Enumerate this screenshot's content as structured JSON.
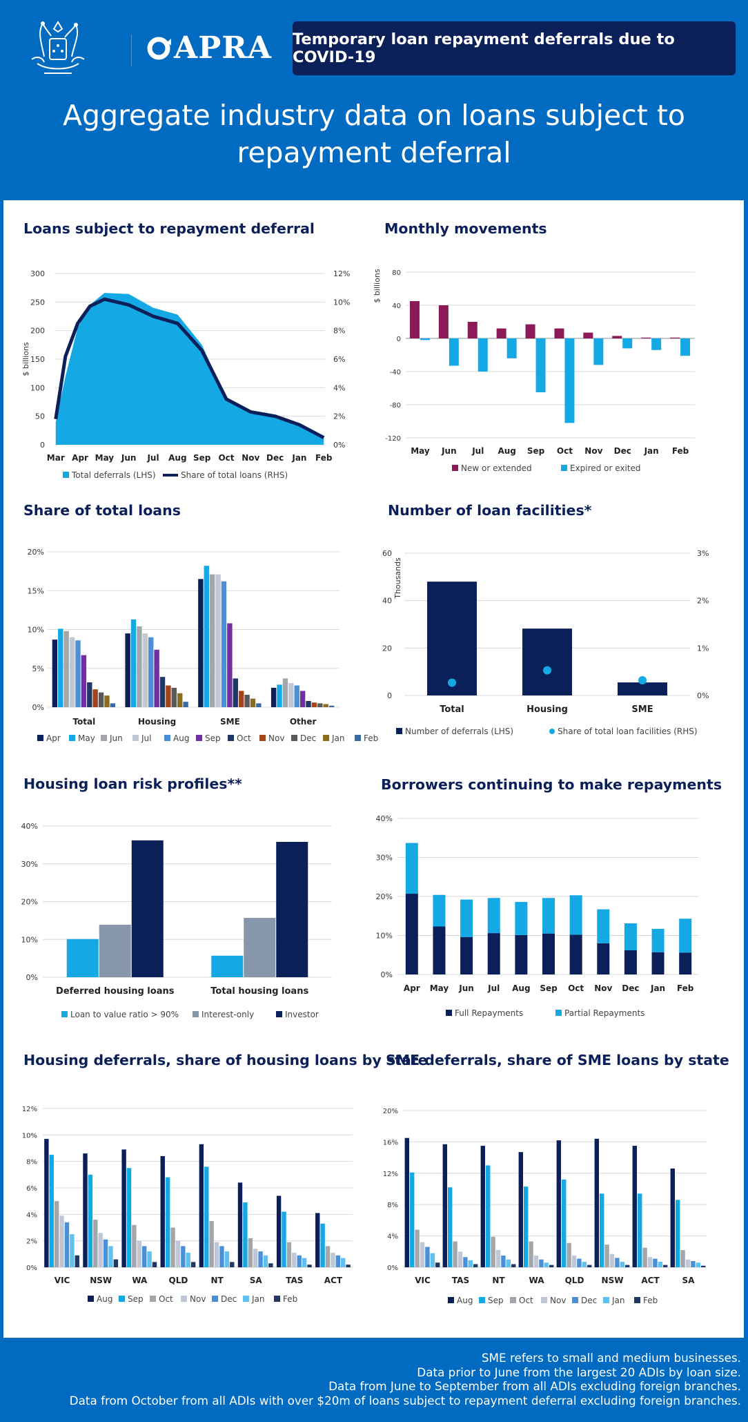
{
  "header": {
    "logo_text": "APRA",
    "crest_icon": "coat-of-arms-icon",
    "logo_icon": "apra-ring-icon",
    "banner": "Temporary loan repayment deferrals due to COVID-19",
    "title_line1": "Aggregate industry data on loans subject to",
    "title_line2": "repayment deferral"
  },
  "colors": {
    "navy": "#0b1f59",
    "cyan": "#14a9e4",
    "maroon": "#8c1a57",
    "grey": "#8797ab",
    "mid_grey": "#a3a6ab",
    "light_grey": "#bfc6d6",
    "blue": "#4a90d9",
    "purple": "#7030a0",
    "dark_red": "#a5441c",
    "dark_grey": "#595959",
    "olive": "#8a6d1f",
    "slate": "#3b6aa0"
  },
  "chart_data": [
    {
      "id": "deferrals",
      "type": "area",
      "title": "Loans subject to repayment deferral",
      "x": [
        "Mar",
        "Apr",
        "May",
        "Jun",
        "Jul",
        "Aug",
        "Sep",
        "Oct",
        "Nov",
        "Dec",
        "Jan",
        "Feb"
      ],
      "series": [
        {
          "name": "Total deferrals (LHS)",
          "axis": "left",
          "color": "#14a9e4",
          "points": [
            [
              0,
              40
            ],
            [
              0.4,
              120
            ],
            [
              0.9,
              205
            ],
            [
              1.4,
              245
            ],
            [
              2,
              266
            ],
            [
              3,
              264
            ],
            [
              4,
              240
            ],
            [
              5,
              228
            ],
            [
              6,
              175
            ],
            [
              7,
              80
            ],
            [
              8,
              56
            ],
            [
              9,
              48
            ],
            [
              10,
              35
            ],
            [
              11,
              12
            ]
          ]
        },
        {
          "name": "Share of total loans (RHS)",
          "axis": "right",
          "color": "#0b1f59",
          "points": [
            [
              0,
              1.8
            ],
            [
              0.4,
              6.2
            ],
            [
              0.9,
              8.5
            ],
            [
              1.4,
              9.7
            ],
            [
              2,
              10.2
            ],
            [
              3,
              9.8
            ],
            [
              4,
              9.0
            ],
            [
              5,
              8.5
            ],
            [
              6,
              6.6
            ],
            [
              7,
              3.2
            ],
            [
              8,
              2.3
            ],
            [
              9,
              2.0
            ],
            [
              10,
              1.4
            ],
            [
              11,
              0.5
            ]
          ]
        }
      ],
      "ylabel": "$ billions",
      "ylim": [
        0,
        300
      ],
      "yticks": [
        "0",
        "50",
        "100",
        "150",
        "200",
        "250",
        "300"
      ],
      "y2lim": [
        0,
        12
      ],
      "y2ticks": [
        "0%",
        "2%",
        "4%",
        "6%",
        "8%",
        "10%",
        "12%"
      ]
    },
    {
      "id": "movements",
      "type": "bar",
      "title": "Monthly movements",
      "categories": [
        "May",
        "Jun",
        "Jul",
        "Aug",
        "Sep",
        "Oct",
        "Nov",
        "Dec",
        "Jan",
        "Feb"
      ],
      "series": [
        {
          "name": "New or extended",
          "color": "#8c1a57",
          "values": [
            45,
            40,
            20,
            12,
            17,
            12,
            7,
            3,
            1,
            1
          ]
        },
        {
          "name": "Expired or exited",
          "color": "#14a9e4",
          "values": [
            -2,
            -33,
            -40,
            -24,
            -65,
            -102,
            -32,
            -12,
            -14,
            -21
          ]
        }
      ],
      "ylabel": "$ billions",
      "ylim": [
        -120,
        80
      ],
      "yticks": [
        "-120",
        "-80",
        "-40",
        "0",
        "40",
        "80"
      ]
    },
    {
      "id": "share",
      "type": "bar",
      "title": "Share of total loans",
      "categories": [
        "Total",
        "Housing",
        "SME",
        "Other"
      ],
      "series": [
        {
          "name": "Apr",
          "color": "#0b1f59",
          "values": [
            8.7,
            9.5,
            16.5,
            2.5
          ]
        },
        {
          "name": "May",
          "color": "#14a9e4",
          "values": [
            10.1,
            11.3,
            18.2,
            2.9
          ]
        },
        {
          "name": "Jun",
          "color": "#a3a6ab",
          "values": [
            9.8,
            10.4,
            17.1,
            3.7
          ]
        },
        {
          "name": "Jul",
          "color": "#bfc6d6",
          "values": [
            9.0,
            9.5,
            17.1,
            3.1
          ]
        },
        {
          "name": "Aug",
          "color": "#4a90d9",
          "values": [
            8.6,
            9.0,
            16.2,
            2.8
          ]
        },
        {
          "name": "Sep",
          "color": "#7030a0",
          "values": [
            6.7,
            7.4,
            10.8,
            2.1
          ]
        },
        {
          "name": "Oct",
          "color": "#1f3864",
          "values": [
            3.2,
            3.9,
            3.7,
            0.8
          ]
        },
        {
          "name": "Nov",
          "color": "#a5441c",
          "values": [
            2.3,
            2.8,
            2.1,
            0.6
          ]
        },
        {
          "name": "Dec",
          "color": "#595959",
          "values": [
            1.9,
            2.5,
            1.6,
            0.5
          ]
        },
        {
          "name": "Jan",
          "color": "#8a6d1f",
          "values": [
            1.5,
            1.8,
            1.1,
            0.4
          ]
        },
        {
          "name": "Feb",
          "color": "#3b6aa0",
          "values": [
            0.5,
            0.7,
            0.5,
            0.2
          ]
        }
      ],
      "ylim": [
        0,
        20
      ],
      "yticks": [
        "0%",
        "5%",
        "10%",
        "15%",
        "20%"
      ]
    },
    {
      "id": "facilities",
      "type": "bar",
      "title": "Number of loan facilities*",
      "categories": [
        "Total",
        "Housing",
        "SME"
      ],
      "series": [
        {
          "name": "Number of deferrals (LHS)",
          "color": "#0b1f59",
          "values": [
            48,
            28.2,
            5.5
          ]
        },
        {
          "name": "Share of total loan facilities (RHS)",
          "color": "#14a9e4",
          "values": [
            0.27,
            0.53,
            0.32
          ]
        }
      ],
      "ylabel": "Thousands",
      "ylim": [
        0,
        60
      ],
      "yticks": [
        "0",
        "20",
        "40",
        "60"
      ],
      "y2lim": [
        0,
        3
      ],
      "y2ticks": [
        "0%",
        "1%",
        "2%",
        "3%"
      ]
    },
    {
      "id": "risk",
      "type": "bar",
      "title": "Housing loan risk profiles**",
      "categories": [
        "Deferred housing loans",
        "Total housing loans"
      ],
      "series": [
        {
          "name": "Loan to value ratio > 90%",
          "color": "#14a9e4",
          "values": [
            10.1,
            5.7
          ]
        },
        {
          "name": "Interest-only",
          "color": "#8797ab",
          "values": [
            13.9,
            15.7
          ]
        },
        {
          "name": "Investor",
          "color": "#0b1f59",
          "values": [
            36.2,
            35.8
          ]
        }
      ],
      "ylim": [
        0,
        40
      ],
      "yticks": [
        "0%",
        "10%",
        "20%",
        "30%",
        "40%"
      ]
    },
    {
      "id": "repayments",
      "type": "bar",
      "title": "Borrowers continuing to make repayments",
      "categories": [
        "Apr",
        "May",
        "Jun",
        "Jul",
        "Aug",
        "Sep",
        "Oct",
        "Nov",
        "Dec",
        "Jan",
        "Feb"
      ],
      "stacked": true,
      "series": [
        {
          "name": "Full Repayments",
          "color": "#0b1f59",
          "values": [
            20.7,
            12.3,
            9.6,
            10.6,
            10.1,
            10.5,
            10.2,
            8.0,
            6.2,
            5.7,
            5.6
          ]
        },
        {
          "name": "Partial Repayments",
          "color": "#14a9e4",
          "values": [
            13.0,
            8.1,
            9.6,
            9.0,
            8.5,
            9.1,
            10.1,
            8.7,
            6.9,
            6.0,
            8.7
          ]
        }
      ],
      "ylim": [
        0,
        40
      ],
      "yticks": [
        "0%",
        "10%",
        "20%",
        "30%",
        "40%"
      ]
    },
    {
      "id": "housing_state",
      "type": "bar",
      "title": "Housing deferrals, share of housing loans by state",
      "categories": [
        "VIC",
        "NSW",
        "WA",
        "QLD",
        "NT",
        "SA",
        "TAS",
        "ACT"
      ],
      "series": [
        {
          "name": "Aug",
          "color": "#0b1f59",
          "values": [
            9.7,
            8.6,
            8.9,
            8.4,
            9.3,
            6.4,
            5.4,
            4.1
          ]
        },
        {
          "name": "Sep",
          "color": "#14a9e4",
          "values": [
            8.5,
            7.0,
            7.5,
            6.8,
            7.6,
            4.9,
            4.2,
            3.3
          ]
        },
        {
          "name": "Oct",
          "color": "#a3a6ab",
          "values": [
            5.0,
            3.6,
            3.2,
            3.0,
            3.5,
            2.2,
            1.9,
            1.6
          ]
        },
        {
          "name": "Nov",
          "color": "#bfc6d6",
          "values": [
            3.9,
            2.6,
            2.0,
            2.0,
            1.9,
            1.4,
            1.1,
            1.1
          ]
        },
        {
          "name": "Dec",
          "color": "#4a90d9",
          "values": [
            3.4,
            2.1,
            1.6,
            1.6,
            1.6,
            1.2,
            0.9,
            0.9
          ]
        },
        {
          "name": "Jan",
          "color": "#5ec1f0",
          "values": [
            2.5,
            1.6,
            1.2,
            1.1,
            1.2,
            0.9,
            0.7,
            0.7
          ]
        },
        {
          "name": "Feb",
          "color": "#1f3864",
          "values": [
            0.9,
            0.6,
            0.4,
            0.4,
            0.4,
            0.3,
            0.2,
            0.2
          ]
        }
      ],
      "ylim": [
        0,
        12
      ],
      "yticks": [
        "0%",
        "2%",
        "4%",
        "6%",
        "8%",
        "10%",
        "12%"
      ]
    },
    {
      "id": "sme_state",
      "type": "bar",
      "title": "SME deferrals, share of SME loans by state",
      "categories": [
        "VIC",
        "TAS",
        "NT",
        "WA",
        "QLD",
        "NSW",
        "ACT",
        "SA"
      ],
      "series": [
        {
          "name": "Aug",
          "color": "#0b1f59",
          "values": [
            16.5,
            15.7,
            15.5,
            14.7,
            16.2,
            16.4,
            15.5,
            12.6
          ]
        },
        {
          "name": "Sep",
          "color": "#14a9e4",
          "values": [
            12.1,
            10.2,
            13.0,
            10.3,
            11.2,
            9.4,
            9.4,
            8.6
          ]
        },
        {
          "name": "Oct",
          "color": "#a3a6ab",
          "values": [
            4.8,
            3.3,
            3.9,
            3.3,
            3.1,
            2.9,
            2.5,
            2.2
          ]
        },
        {
          "name": "Nov",
          "color": "#bfc6d6",
          "values": [
            3.2,
            2.0,
            2.2,
            1.5,
            1.5,
            1.7,
            1.3,
            1.0
          ]
        },
        {
          "name": "Dec",
          "color": "#4a90d9",
          "values": [
            2.6,
            1.3,
            1.5,
            1.0,
            1.1,
            1.2,
            1.1,
            0.8
          ]
        },
        {
          "name": "Jan",
          "color": "#5ec1f0",
          "values": [
            1.8,
            0.9,
            1.0,
            0.6,
            0.7,
            0.7,
            0.7,
            0.6
          ]
        },
        {
          "name": "Feb",
          "color": "#1f3864",
          "values": [
            0.6,
            0.4,
            0.4,
            0.3,
            0.3,
            0.3,
            0.3,
            0.2
          ]
        }
      ],
      "ylim": [
        0,
        20
      ],
      "yticks": [
        "0%",
        "4%",
        "8%",
        "12%",
        "16%",
        "20%"
      ]
    }
  ],
  "footer": {
    "line1": "SME refers to small and medium businesses.",
    "line2": "Data prior to June from the largest 20 ADIs by loan size.",
    "line3": "Data from June to September from all ADIs excluding foreign branches.",
    "line4": "Data from October from all ADIs with over $20m of loans subject to repayment deferral excluding foreign branches."
  }
}
